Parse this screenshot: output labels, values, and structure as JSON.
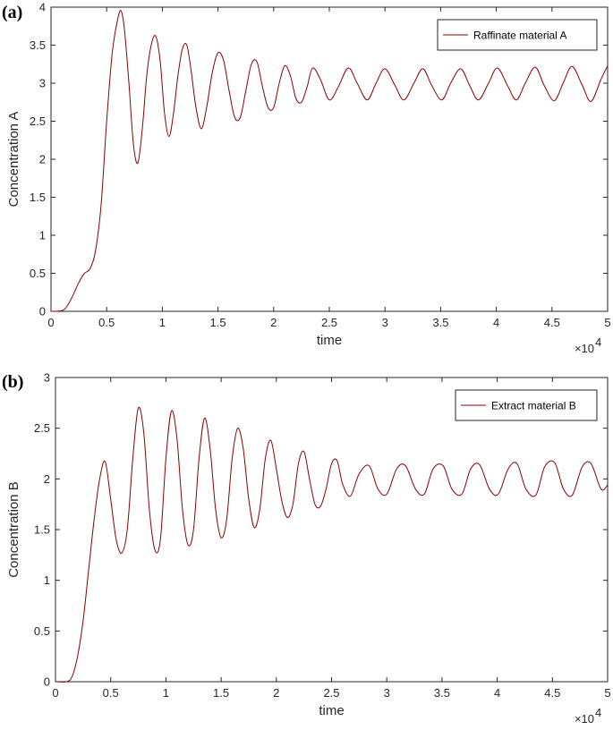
{
  "chart_data": [
    {
      "type": "line",
      "panel_label": "(a)",
      "xlabel": "time",
      "ylabel": "Concentration A",
      "x_exponent_label": "×10",
      "x_exponent": "4",
      "xlim": [
        0,
        5
      ],
      "ylim": [
        0,
        4
      ],
      "x_ticks": [
        "0",
        "0.5",
        "1",
        "1.5",
        "2",
        "2.5",
        "3",
        "3.5",
        "4",
        "4.5",
        "5"
      ],
      "y_ticks": [
        "0",
        "0.5",
        "1",
        "1.5",
        "2",
        "2.5",
        "3",
        "3.5",
        "4"
      ],
      "legend_position": "top-right",
      "color": "#8b0000",
      "series": [
        {
          "name": "Raffinate material A",
          "x": [
            0,
            0.1,
            0.15,
            0.2,
            0.25,
            0.3,
            0.35,
            0.4,
            0.45,
            0.5,
            0.55,
            0.6,
            0.63,
            0.66,
            0.7,
            0.74,
            0.78,
            0.82,
            0.86,
            0.9,
            0.94,
            0.98,
            1.02,
            1.06,
            1.1,
            1.14,
            1.18,
            1.22,
            1.26,
            1.3,
            1.35,
            1.4,
            1.45,
            1.5,
            1.55,
            1.6,
            1.65,
            1.7,
            1.75,
            1.8,
            1.85,
            1.9,
            1.95,
            2.0,
            2.05,
            2.1,
            2.15,
            2.2,
            2.25,
            2.3,
            2.35,
            2.42,
            2.5,
            2.58,
            2.67,
            2.75,
            2.84,
            2.92,
            3.0,
            3.09,
            3.17,
            3.26,
            3.34,
            3.42,
            3.51,
            3.59,
            3.68,
            3.76,
            3.84,
            3.93,
            4.01,
            4.1,
            4.18,
            4.26,
            4.35,
            4.43,
            4.52,
            4.6,
            4.68,
            4.77,
            4.85,
            4.94,
            5.0
          ],
          "y": [
            0,
            0.01,
            0.08,
            0.22,
            0.38,
            0.5,
            0.56,
            0.8,
            1.4,
            2.5,
            3.4,
            3.85,
            3.95,
            3.7,
            3.0,
            2.2,
            1.95,
            2.4,
            3.1,
            3.5,
            3.62,
            3.3,
            2.6,
            2.3,
            2.6,
            3.1,
            3.45,
            3.5,
            3.15,
            2.7,
            2.4,
            2.7,
            3.15,
            3.4,
            3.3,
            2.9,
            2.55,
            2.55,
            2.9,
            3.25,
            3.28,
            2.95,
            2.68,
            2.68,
            3.0,
            3.23,
            3.1,
            2.8,
            2.75,
            2.95,
            3.2,
            3.05,
            2.78,
            2.95,
            3.2,
            3.0,
            2.78,
            3.0,
            3.19,
            2.97,
            2.78,
            3.0,
            3.19,
            2.97,
            2.78,
            3.0,
            3.19,
            2.97,
            2.78,
            3.0,
            3.2,
            2.97,
            2.78,
            3.0,
            3.21,
            2.97,
            2.77,
            3.0,
            3.22,
            2.98,
            2.76,
            3.05,
            3.23
          ]
        }
      ]
    },
    {
      "type": "line",
      "panel_label": "(b)",
      "xlabel": "time",
      "ylabel": "Concentration B",
      "x_exponent_label": "×10",
      "x_exponent": "4",
      "xlim": [
        0,
        5
      ],
      "ylim": [
        0,
        3
      ],
      "x_ticks": [
        "0",
        "0.5",
        "1",
        "1.5",
        "2",
        "2.5",
        "3",
        "3.5",
        "4",
        "4.5",
        "5"
      ],
      "y_ticks": [
        "0",
        "0.5",
        "1",
        "1.5",
        "2",
        "2.5",
        "3"
      ],
      "legend_position": "top-right",
      "color": "#8b0000",
      "series": [
        {
          "name": "Extract material B",
          "x": [
            0,
            0.1,
            0.15,
            0.2,
            0.25,
            0.3,
            0.35,
            0.4,
            0.45,
            0.5,
            0.55,
            0.6,
            0.65,
            0.7,
            0.75,
            0.8,
            0.85,
            0.9,
            0.95,
            1.0,
            1.05,
            1.1,
            1.15,
            1.2,
            1.25,
            1.3,
            1.35,
            1.4,
            1.45,
            1.5,
            1.55,
            1.6,
            1.65,
            1.7,
            1.75,
            1.8,
            1.85,
            1.9,
            1.95,
            2.0,
            2.05,
            2.1,
            2.15,
            2.2,
            2.25,
            2.3,
            2.35,
            2.4,
            2.45,
            2.5,
            2.55,
            2.6,
            2.67,
            2.75,
            2.84,
            2.92,
            3.0,
            3.09,
            3.17,
            3.26,
            3.34,
            3.42,
            3.51,
            3.59,
            3.68,
            3.76,
            3.84,
            3.93,
            4.01,
            4.1,
            4.18,
            4.26,
            4.35,
            4.43,
            4.52,
            4.6,
            4.68,
            4.77,
            4.85,
            4.94,
            5.0
          ],
          "y": [
            0,
            0,
            0.05,
            0.25,
            0.6,
            1.1,
            1.6,
            2.0,
            2.17,
            1.8,
            1.4,
            1.27,
            1.5,
            2.2,
            2.7,
            2.45,
            1.7,
            1.3,
            1.4,
            2.2,
            2.67,
            2.4,
            1.7,
            1.35,
            1.5,
            2.2,
            2.6,
            2.3,
            1.7,
            1.42,
            1.6,
            2.2,
            2.5,
            2.3,
            1.8,
            1.52,
            1.7,
            2.2,
            2.38,
            2.1,
            1.78,
            1.62,
            1.75,
            2.15,
            2.27,
            2.0,
            1.75,
            1.73,
            1.9,
            2.15,
            2.18,
            1.95,
            1.83,
            2.05,
            2.13,
            1.9,
            1.85,
            2.1,
            2.13,
            1.9,
            1.85,
            2.1,
            2.13,
            1.9,
            1.85,
            2.1,
            2.14,
            1.9,
            1.85,
            2.1,
            2.15,
            1.9,
            1.84,
            2.12,
            2.16,
            1.9,
            1.84,
            2.12,
            2.15,
            1.9,
            1.94
          ]
        }
      ]
    }
  ]
}
